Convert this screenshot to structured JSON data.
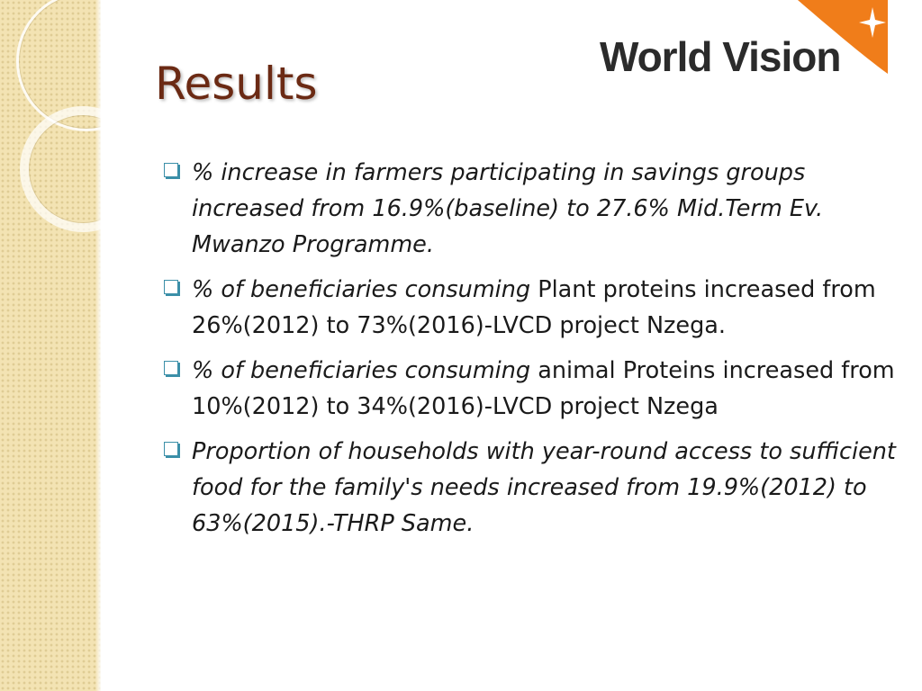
{
  "logo": {
    "text": "World Vision",
    "colors": {
      "orange": "#f07d1a",
      "text": "#2b2b2b"
    }
  },
  "title": "Results",
  "bullets": [
    {
      "italic": "% increase in farmers participating in savings groups increased from 16.9%(baseline) to 27.6% Mid.Term Ev. Mwanzo Programme.",
      "normal": ""
    },
    {
      "italic": "% of beneficiaries consuming",
      "normal": " Plant proteins increased from  26%(2012) to 73%(2016)-LVCD project Nzega."
    },
    {
      "italic": "% of beneficiaries consuming",
      "normal": " animal Proteins increased from 10%(2012) to 34%(2016)-LVCD project Nzega"
    },
    {
      "italic": "Proportion of households with year-round access to sufficient food for the family's needs increased from 19.9%(2012) to 63%(2015).-THRP  Same.",
      "normal": ""
    }
  ],
  "colors": {
    "title": "#6b2a14",
    "bullet": "#3b8fa8",
    "panel": "#f3e3b3"
  }
}
